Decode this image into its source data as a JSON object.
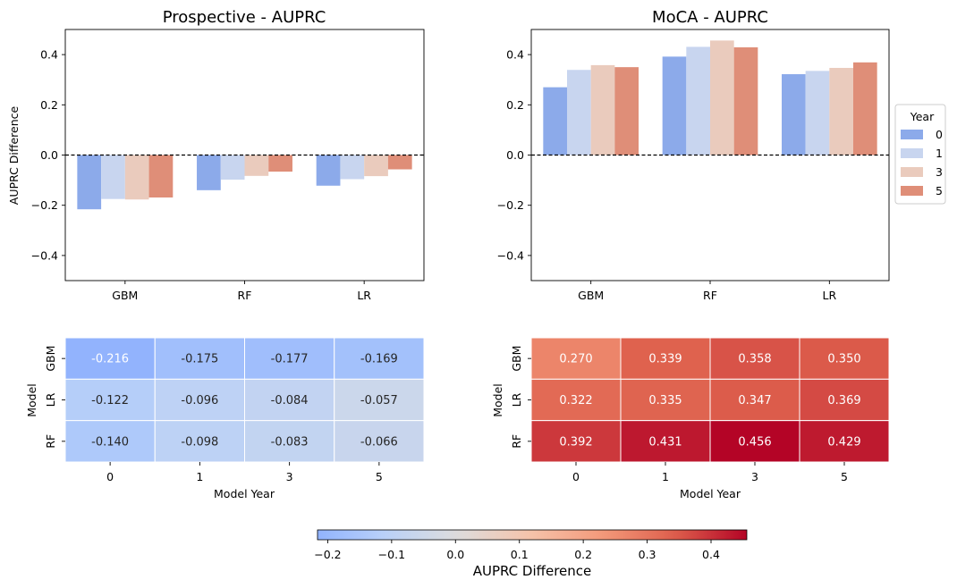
{
  "chart_data": [
    {
      "type": "bar",
      "title": "Prospective - AUPRC",
      "xlabel": "",
      "ylabel": "AUPRC Difference",
      "ylim": [
        -0.5,
        0.5
      ],
      "yticks": [
        -0.4,
        -0.2,
        0.0,
        0.2,
        0.4
      ],
      "ytick_labels": [
        "−0.4",
        "−0.2",
        "0.0",
        "0.2",
        "0.4"
      ],
      "reference_line": {
        "y": 0,
        "style": "dashed"
      },
      "categories": [
        "GBM",
        "RF",
        "LR"
      ],
      "series": [
        {
          "name": "0",
          "values": [
            -0.216,
            -0.14,
            -0.122
          ]
        },
        {
          "name": "1",
          "values": [
            -0.175,
            -0.098,
            -0.096
          ]
        },
        {
          "name": "3",
          "values": [
            -0.177,
            -0.083,
            -0.084
          ]
        },
        {
          "name": "5",
          "values": [
            -0.169,
            -0.066,
            -0.057
          ]
        }
      ]
    },
    {
      "type": "bar",
      "title": "MoCA - AUPRC",
      "xlabel": "",
      "ylabel": "",
      "ylim": [
        -0.5,
        0.5
      ],
      "yticks": [
        -0.4,
        -0.2,
        0.0,
        0.2,
        0.4
      ],
      "ytick_labels": [
        "−0.4",
        "−0.2",
        "0.0",
        "0.2",
        "0.4"
      ],
      "reference_line": {
        "y": 0,
        "style": "dashed"
      },
      "categories": [
        "GBM",
        "RF",
        "LR"
      ],
      "legend": {
        "title": "Year",
        "placement": "right",
        "entries": [
          "0",
          "1",
          "3",
          "5"
        ]
      },
      "series": [
        {
          "name": "0",
          "values": [
            0.27,
            0.392,
            0.322
          ]
        },
        {
          "name": "1",
          "values": [
            0.339,
            0.431,
            0.335
          ]
        },
        {
          "name": "3",
          "values": [
            0.358,
            0.456,
            0.347
          ]
        },
        {
          "name": "5",
          "values": [
            0.35,
            0.429,
            0.369
          ]
        }
      ]
    },
    {
      "type": "heatmap",
      "xlabel": "Model Year",
      "ylabel": "Model",
      "x": [
        "0",
        "1",
        "3",
        "5"
      ],
      "y": [
        "GBM",
        "LR",
        "RF"
      ],
      "values": [
        [
          -0.216,
          -0.175,
          -0.177,
          -0.169
        ],
        [
          -0.122,
          -0.096,
          -0.084,
          -0.057
        ],
        [
          -0.14,
          -0.098,
          -0.083,
          -0.066
        ]
      ],
      "cell_labels": [
        [
          "-0.216",
          "-0.175",
          "-0.177",
          "-0.169"
        ],
        [
          "-0.122",
          "-0.096",
          "-0.084",
          "-0.057"
        ],
        [
          "-0.140",
          "-0.098",
          "-0.083",
          "-0.066"
        ]
      ]
    },
    {
      "type": "heatmap",
      "xlabel": "Model Year",
      "ylabel": "Model",
      "x": [
        "0",
        "1",
        "3",
        "5"
      ],
      "y": [
        "GBM",
        "LR",
        "RF"
      ],
      "values": [
        [
          0.27,
          0.339,
          0.358,
          0.35
        ],
        [
          0.322,
          0.335,
          0.347,
          0.369
        ],
        [
          0.392,
          0.431,
          0.456,
          0.429
        ]
      ],
      "cell_labels": [
        [
          "0.270",
          "0.339",
          "0.358",
          "0.350"
        ],
        [
          "0.322",
          "0.335",
          "0.347",
          "0.369"
        ],
        [
          "0.392",
          "0.431",
          "0.456",
          "0.429"
        ]
      ]
    }
  ],
  "colorbar": {
    "label": "AUPRC Difference",
    "range": [
      -0.216,
      0.456
    ],
    "colormap": "coolwarm",
    "ticks": [
      -0.2,
      -0.1,
      0.0,
      0.1,
      0.2,
      0.3,
      0.4
    ],
    "tick_labels": [
      "−0.2",
      "−0.1",
      "0.0",
      "0.1",
      "0.2",
      "0.3",
      "0.4"
    ]
  },
  "colors": {
    "series": [
      "#8caaea",
      "#c8d5ef",
      "#eacbbd",
      "#df8e78"
    ],
    "coolwarm_stops": [
      [
        0.0,
        "#3b4cc0"
      ],
      [
        0.125,
        "#6282ea"
      ],
      [
        0.25,
        "#8db0fe"
      ],
      [
        0.375,
        "#b8d0f9"
      ],
      [
        0.5,
        "#dddddd"
      ],
      [
        0.625,
        "#f5c4ac"
      ],
      [
        0.75,
        "#f49a7b"
      ],
      [
        0.875,
        "#de604d"
      ],
      [
        1.0,
        "#b40426"
      ]
    ],
    "heatmap_norm": [
      -0.456,
      0.456
    ]
  }
}
